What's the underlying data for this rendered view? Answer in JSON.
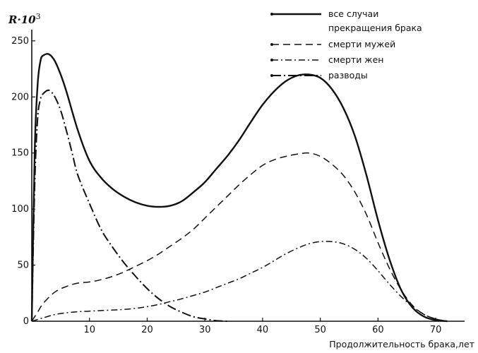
{
  "chart_data": {
    "type": "line",
    "title": "",
    "ylabel": "R·10",
    "ylabel_exp": "3",
    "xlabel": "Продолжительность брака,лет",
    "xlim": [
      0,
      75
    ],
    "ylim": [
      0,
      260
    ],
    "x_ticks": [
      10,
      20,
      30,
      40,
      50,
      60,
      70
    ],
    "y_ticks": [
      0,
      50,
      100,
      150,
      200,
      250
    ],
    "grid": false,
    "legend_position": "top-right",
    "series": [
      {
        "name": "все случаи прекращения брака",
        "legend_lines": [
          "все случаи",
          "прекращения брака"
        ],
        "style": "solid",
        "x": [
          0,
          0.5,
          1,
          1.5,
          2,
          3,
          4,
          5,
          6,
          8,
          10,
          12,
          14,
          16,
          18,
          20,
          22,
          24,
          26,
          28,
          30,
          32,
          34,
          36,
          38,
          40,
          42,
          44,
          46,
          48,
          50,
          52,
          54,
          56,
          58,
          60,
          62,
          64,
          66,
          68,
          70,
          72
        ],
        "y": [
          0,
          150,
          210,
          232,
          237,
          238,
          232,
          220,
          205,
          170,
          143,
          128,
          118,
          111,
          106,
          103,
          102,
          103,
          107,
          115,
          124,
          136,
          148,
          162,
          178,
          193,
          205,
          214,
          219,
          220,
          217,
          207,
          190,
          165,
          130,
          90,
          55,
          28,
          12,
          4,
          1,
          0
        ]
      },
      {
        "name": "смерти мужей",
        "legend_lines": [
          "смерти мужей"
        ],
        "style": "dash",
        "x": [
          0,
          1,
          2,
          4,
          6,
          8,
          10,
          12,
          14,
          16,
          18,
          20,
          22,
          24,
          26,
          28,
          30,
          32,
          34,
          36,
          38,
          40,
          42,
          44,
          46,
          48,
          50,
          52,
          54,
          56,
          58,
          60,
          62,
          64,
          66,
          68,
          70,
          72
        ],
        "y": [
          0,
          8,
          16,
          26,
          31,
          34,
          35,
          37,
          40,
          44,
          49,
          54,
          60,
          67,
          74,
          82,
          92,
          102,
          112,
          122,
          131,
          139,
          144,
          147,
          149,
          150,
          147,
          140,
          130,
          115,
          95,
          70,
          47,
          28,
          14,
          6,
          2,
          0
        ]
      },
      {
        "name": "смерти жен",
        "legend_lines": [
          "смерти жен"
        ],
        "style": "dashdot",
        "x": [
          0,
          2,
          4,
          6,
          8,
          10,
          12,
          14,
          16,
          18,
          20,
          22,
          24,
          26,
          28,
          30,
          32,
          34,
          36,
          38,
          40,
          42,
          44,
          46,
          48,
          50,
          52,
          54,
          56,
          58,
          60,
          62,
          64,
          66,
          68,
          70,
          72
        ],
        "y": [
          0,
          3,
          6,
          7.5,
          8.5,
          9,
          9.5,
          10,
          10.5,
          11.5,
          13,
          15,
          17.5,
          20,
          23,
          26,
          30,
          34,
          38,
          43,
          48,
          54,
          60,
          65,
          69,
          71,
          71,
          69,
          64,
          56,
          45,
          33,
          22,
          13,
          6,
          2,
          0
        ]
      },
      {
        "name": "разводы",
        "legend_lines": [
          "разводы"
        ],
        "style": "longdashdot",
        "x": [
          0,
          0.5,
          1,
          1.5,
          2,
          3,
          4,
          5,
          6,
          7,
          8,
          10,
          12,
          14,
          16,
          18,
          20,
          22,
          24,
          26,
          28,
          30,
          32,
          34
        ],
        "y": [
          0,
          120,
          180,
          198,
          203,
          206,
          200,
          188,
          170,
          150,
          130,
          105,
          82,
          66,
          52,
          40,
          29,
          20,
          13,
          8,
          4,
          2,
          0.5,
          0
        ]
      }
    ]
  }
}
